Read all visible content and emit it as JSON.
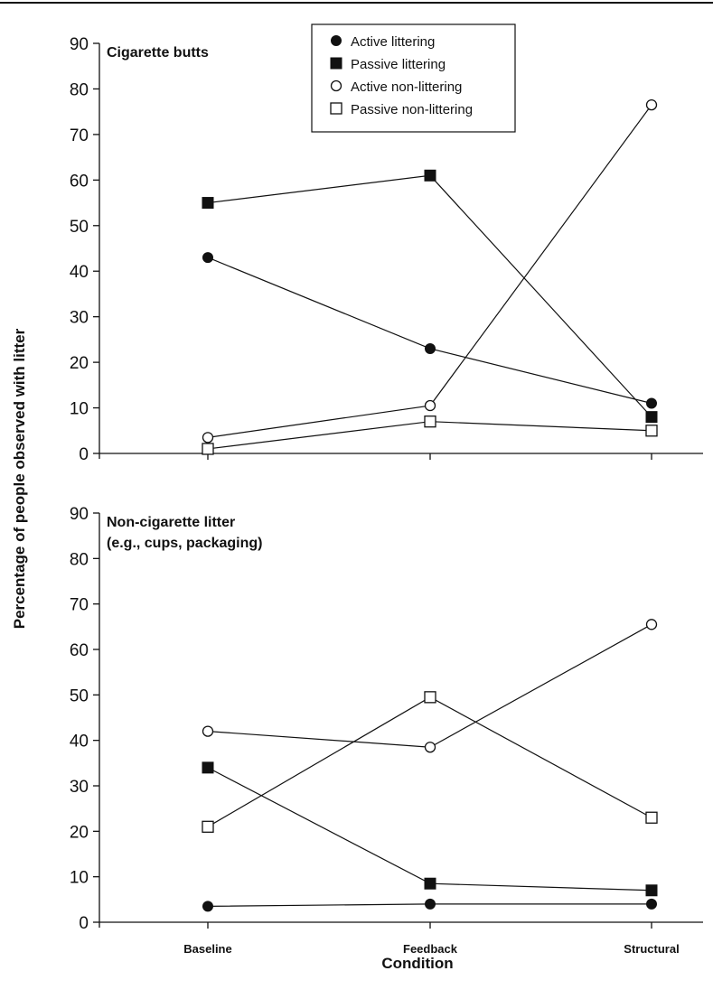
{
  "chart_data": [
    {
      "type": "line",
      "title": "Cigarette butts",
      "categories": [
        "Baseline",
        "Feedback",
        "Structural"
      ],
      "ylim": [
        0,
        90
      ],
      "yticks": [
        0,
        10,
        20,
        30,
        40,
        50,
        60,
        70,
        80,
        90
      ],
      "xlabel": "",
      "grid": false,
      "legend": "top-center",
      "series": [
        {
          "name": "Active littering",
          "marker": "filled-circle",
          "values": [
            43,
            23,
            11
          ]
        },
        {
          "name": "Passive littering",
          "marker": "filled-square",
          "values": [
            55,
            61,
            8
          ]
        },
        {
          "name": "Active non-littering",
          "marker": "open-circle",
          "values": [
            3.5,
            10.5,
            76.5
          ]
        },
        {
          "name": "Passive non-littering",
          "marker": "open-square",
          "values": [
            1,
            7,
            5
          ]
        }
      ]
    },
    {
      "type": "line",
      "title": "Non-cigarette litter",
      "subtitle": "(e.g., cups, packaging)",
      "categories": [
        "Baseline",
        "Feedback",
        "Structural"
      ],
      "ylim": [
        0,
        90
      ],
      "yticks": [
        0,
        10,
        20,
        30,
        40,
        50,
        60,
        70,
        80,
        90
      ],
      "xlabel": "Condition",
      "grid": false,
      "series": [
        {
          "name": "Active littering",
          "marker": "filled-circle",
          "values": [
            3.5,
            4,
            4
          ]
        },
        {
          "name": "Passive littering",
          "marker": "filled-square",
          "values": [
            34,
            8.5,
            7
          ]
        },
        {
          "name": "Active non-littering",
          "marker": "open-circle",
          "values": [
            42,
            38.5,
            65.5
          ]
        },
        {
          "name": "Passive non-littering",
          "marker": "open-square",
          "values": [
            21,
            49.5,
            23
          ]
        }
      ]
    }
  ],
  "ylabel": "Percentage of people observed with litter",
  "xlabel": "Condition"
}
